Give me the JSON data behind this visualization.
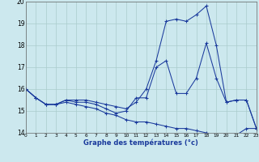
{
  "title": "Graphe des températures (°c)",
  "bg_color": "#cce8ee",
  "line_color": "#1a3a9c",
  "grid_color": "#aacccc",
  "ylim": [
    14,
    20
  ],
  "xlim": [
    0,
    23
  ],
  "yticks": [
    14,
    15,
    16,
    17,
    18,
    19,
    20
  ],
  "xticks": [
    0,
    1,
    2,
    3,
    4,
    5,
    6,
    7,
    8,
    9,
    10,
    11,
    12,
    13,
    14,
    15,
    16,
    17,
    18,
    19,
    20,
    21,
    22,
    23
  ],
  "series": [
    {
      "x": [
        0,
        1,
        2,
        3,
        4,
        5,
        6,
        7,
        8,
        9,
        10,
        11,
        12,
        13,
        14,
        15,
        16,
        17,
        18,
        19,
        20,
        21,
        22,
        23
      ],
      "y": [
        16.0,
        15.6,
        15.3,
        15.3,
        15.5,
        15.5,
        15.5,
        15.4,
        15.3,
        15.2,
        15.1,
        15.4,
        16.0,
        17.3,
        19.1,
        19.2,
        19.1,
        19.4,
        19.8,
        18.0,
        15.4,
        15.5,
        15.5,
        14.2
      ]
    },
    {
      "x": [
        0,
        1,
        2,
        3,
        4,
        5,
        6,
        7,
        8,
        9,
        10,
        11,
        12,
        13,
        14,
        15,
        16,
        17,
        18,
        19,
        20,
        21,
        22,
        23
      ],
      "y": [
        16.0,
        15.6,
        15.3,
        15.3,
        15.5,
        15.4,
        15.4,
        15.3,
        15.1,
        14.9,
        15.0,
        15.6,
        15.6,
        17.0,
        17.3,
        15.8,
        15.8,
        16.5,
        18.1,
        16.5,
        15.4,
        15.5,
        15.5,
        14.2
      ]
    },
    {
      "x": [
        0,
        1,
        2,
        3,
        4,
        5,
        6,
        7,
        8,
        9,
        10,
        11,
        12,
        13,
        14,
        15,
        16,
        17,
        18,
        19,
        20,
        21,
        22,
        23
      ],
      "y": [
        16.0,
        15.6,
        15.3,
        15.3,
        15.4,
        15.3,
        15.2,
        15.1,
        14.9,
        14.8,
        14.6,
        14.5,
        14.5,
        14.4,
        14.3,
        14.2,
        14.2,
        14.1,
        14.0,
        13.9,
        13.9,
        13.9,
        14.2,
        14.2
      ]
    }
  ]
}
